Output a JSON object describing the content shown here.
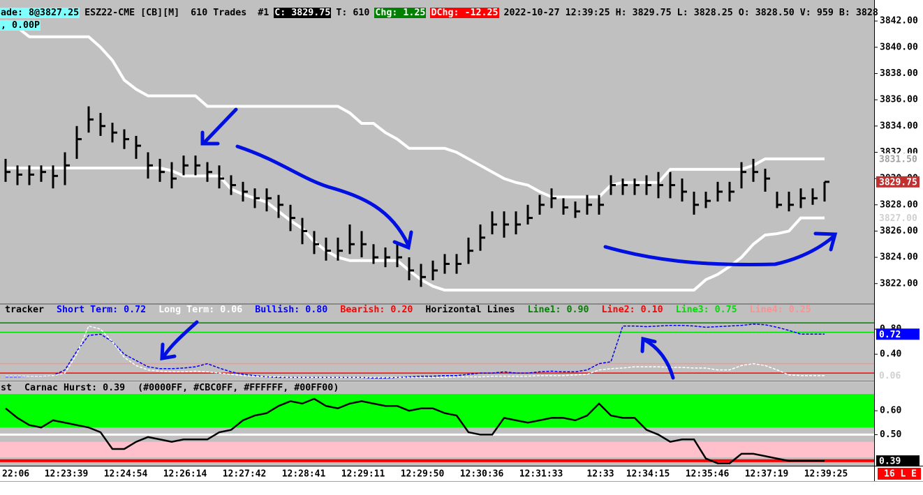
{
  "header": {
    "line1": [
      {
        "text": "ade: 8@3827.25",
        "bg": "#80ffff",
        "fg": "#000000"
      },
      {
        "text": "ESZ22-CME [CB][M]  610 Trades  #1",
        "bg": "transparent",
        "fg": "#000000"
      },
      {
        "text": "C: 3829.75",
        "bg": "#000000",
        "fg": "#ffffff"
      },
      {
        "text": "T: 610",
        "bg": "transparent",
        "fg": "#000000"
      },
      {
        "text": "Chg: 1.25",
        "bg": "#008000",
        "fg": "#ffffff"
      },
      {
        "text": "DChg: -12.25",
        "bg": "#ff0000",
        "fg": "#ffffff"
      },
      {
        "text": "2022-10-27 12:39:25 H: 3829.75 L: 3828.25 O: 3828.50 V: 959 B: 3828",
        "bg": "transparent",
        "fg": "#000000"
      }
    ],
    "line2": [
      {
        "text": ", 0.00P",
        "bg": "#80ffff",
        "fg": "#000000"
      }
    ]
  },
  "status_box": {
    "text": "16 L E",
    "bg": "#ff0000",
    "fg": "#ffffff"
  },
  "chart_data": [
    {
      "type": "ohlc",
      "color": "#000000",
      "categories": [
        "22:06",
        null,
        null,
        null,
        null,
        "12:23:39",
        null,
        null,
        null,
        null,
        "12:24:54",
        null,
        null,
        null,
        null,
        "12:26:14",
        null,
        null,
        null,
        null,
        "12:27:42",
        null,
        null,
        null,
        null,
        "12:28:41",
        null,
        null,
        null,
        null,
        "12:29:11",
        null,
        null,
        null,
        null,
        "12:29:50",
        null,
        null,
        null,
        null,
        "12:30:36",
        null,
        null,
        null,
        null,
        "12:31:33",
        null,
        null,
        null,
        null,
        "12:33",
        null,
        null,
        null,
        "12:34:15",
        null,
        null,
        null,
        null,
        "12:35:46",
        null,
        null,
        null,
        null,
        "12:37:19",
        null,
        null,
        null,
        null,
        "12:39:25"
      ],
      "high": [
        3831.5,
        3831,
        3831,
        3831,
        3831,
        3832,
        3834,
        3835.5,
        3835,
        3834.25,
        3833.75,
        3833.25,
        3832,
        3831.5,
        3831.25,
        3831.75,
        3831.75,
        3831.25,
        3831,
        3830.25,
        3829.75,
        3829.25,
        3829.25,
        3828.75,
        3828,
        3827,
        3826,
        3825.5,
        3825.5,
        3826.5,
        3826,
        3825,
        3824.75,
        3825,
        3824,
        3823.5,
        3823.75,
        3824.25,
        3824.25,
        3825.5,
        3826.5,
        3827.5,
        3827.5,
        3827.5,
        3828,
        3828.75,
        3829.25,
        3828.5,
        3828.25,
        3828.75,
        3828.75,
        3830.25,
        3830,
        3830,
        3830.25,
        3830.5,
        3830.5,
        3830,
        3829,
        3829,
        3829.75,
        3829.75,
        3831.25,
        3831.5,
        3830.75,
        3829,
        3829,
        3829.25,
        3829.25,
        3829.75
      ],
      "low": [
        3829.75,
        3829.5,
        3829.5,
        3829.75,
        3829.25,
        3829.5,
        3831.5,
        3833.5,
        3833.25,
        3832.75,
        3832.25,
        3831.5,
        3830,
        3829.75,
        3829.25,
        3830.25,
        3830.25,
        3829.75,
        3829.25,
        3828.75,
        3828.25,
        3827.75,
        3827.5,
        3827,
        3826,
        3825,
        3824.25,
        3823.75,
        3823.75,
        3824.25,
        3824,
        3823.5,
        3823.25,
        3823.25,
        3822.25,
        3821.75,
        3822.25,
        3822.75,
        3822.75,
        3823.5,
        3824.5,
        3825.75,
        3825.5,
        3825.75,
        3826.5,
        3827.25,
        3827.75,
        3827.25,
        3827,
        3827.25,
        3827.25,
        3828.75,
        3828.75,
        3828.75,
        3828.75,
        3828.5,
        3828.5,
        3828.25,
        3827.25,
        3827.75,
        3828.25,
        3828.25,
        3829.25,
        3829.75,
        3829,
        3827.75,
        3827.5,
        3827.75,
        3828,
        3828.25
      ],
      "close": [
        3830.5,
        3830.3,
        3830.3,
        3830.5,
        3830.2,
        3831,
        3833,
        3834.5,
        3834,
        3833.5,
        3833,
        3832.5,
        3831,
        3830.5,
        3830,
        3831,
        3831,
        3830.5,
        3830,
        3829.5,
        3829,
        3828.5,
        3828.5,
        3828,
        3827,
        3826,
        3825,
        3824.5,
        3824.5,
        3825,
        3825,
        3824,
        3824,
        3824,
        3823,
        3822.5,
        3823,
        3823.5,
        3823.5,
        3824.5,
        3825.5,
        3826.5,
        3826.5,
        3826.5,
        3827,
        3828,
        3828.5,
        3827.8,
        3827.5,
        3828,
        3828,
        3829.5,
        3829.5,
        3829.5,
        3829.5,
        3829.5,
        3829.5,
        3829,
        3828,
        3828.3,
        3829,
        3829,
        3830.5,
        3830.5,
        3830,
        3828,
        3828,
        3828.5,
        3828.5,
        3829.75
      ],
      "overlays": [
        {
          "color": "#ffffff",
          "values": [
            3842,
            3841.5,
            3840.8,
            3840.8,
            3840.8,
            3840.8,
            3840.8,
            3840.8,
            3840,
            3839,
            3837.5,
            3836.8,
            3836.3,
            3836.3,
            3836.3,
            3836.3,
            3836.3,
            3835.5,
            3835.5,
            3835.5,
            3835.5,
            3835.5,
            3835.5,
            3835.5,
            3835.5,
            3835.5,
            3835.5,
            3835.5,
            3835.5,
            3835,
            3834.2,
            3834.2,
            3833.5,
            3833,
            3832.3,
            3832.3,
            3832.3,
            3832.3,
            3832,
            3831.5,
            3831,
            3830.5,
            3830,
            3829.7,
            3829.5,
            3829,
            3828.6,
            3828.6,
            3828.6,
            3828.6,
            3828.6,
            3829.5,
            3829.7,
            3829.7,
            3829.7,
            3829.7,
            3830.7,
            3830.7,
            3830.7,
            3830.7,
            3830.7,
            3830.7,
            3830.7,
            3831,
            3831.5,
            3831.5,
            3831.5,
            3831.5,
            3831.5,
            3831.5
          ]
        },
        {
          "color": "#ffffff",
          "values": [
            3830.8,
            3830.8,
            3830.8,
            3830.8,
            3830.8,
            3830.8,
            3830.8,
            3830.8,
            3830.8,
            3830.8,
            3830.8,
            3830.8,
            3830.8,
            3830.8,
            3830.6,
            3830.2,
            3830.2,
            3830.2,
            3830.2,
            3829.2,
            3828.8,
            3828.5,
            3828.2,
            3827.5,
            3826.8,
            3826.2,
            3825.2,
            3824.5,
            3824,
            3823.75,
            3823.75,
            3823.75,
            3823.75,
            3823.75,
            3823,
            3822.3,
            3821.8,
            3821.5,
            3821.5,
            3821.5,
            3821.5,
            3821.5,
            3821.5,
            3821.5,
            3821.5,
            3821.5,
            3821.5,
            3821.5,
            3821.5,
            3821.5,
            3821.5,
            3821.5,
            3821.5,
            3821.5,
            3821.5,
            3821.5,
            3821.5,
            3821.5,
            3821.5,
            3822.3,
            3822.7,
            3823.3,
            3824,
            3825,
            3825.7,
            3825.8,
            3826,
            3827,
            3827,
            3827
          ]
        }
      ],
      "ylim": [
        3820.5,
        3843.6
      ],
      "yticks": [
        {
          "value": 3842,
          "label": "3842.00"
        },
        {
          "value": 3840,
          "label": "3840.00"
        },
        {
          "value": 3838,
          "label": "3838.00"
        },
        {
          "value": 3836,
          "label": "3836.00"
        },
        {
          "value": 3834,
          "label": "3834.00"
        },
        {
          "value": 3832,
          "label": "3832.00"
        },
        {
          "value": 3830,
          "label": "3830.00"
        },
        {
          "value": 3828,
          "label": "3828.00"
        },
        {
          "value": 3826,
          "label": "3826.00"
        },
        {
          "value": 3824,
          "label": "3824.00"
        },
        {
          "value": 3822,
          "label": "3822.00"
        }
      ],
      "value_markers": [
        {
          "value": 3831.5,
          "label": "3831.50",
          "bg": "#ffffff",
          "fg": "#a0a0a0"
        },
        {
          "value": 3829.75,
          "label": "3829.75",
          "bg": "#c03030",
          "fg": "#ffffff"
        },
        {
          "value": 3827,
          "label": "3827.00",
          "bg": "#ffffff",
          "fg": "#d0d0d0"
        }
      ]
    },
    {
      "type": "line",
      "legend": [
        {
          "text": "tracker",
          "color": "#000000"
        },
        {
          "text": "Short Term: 0.72",
          "color": "#0000ff"
        },
        {
          "text": "Long Term: 0.06",
          "color": "#ffffff"
        },
        {
          "text": "Bullish: 0.80",
          "color": "#0000ff"
        },
        {
          "text": "Bearish: 0.20",
          "color": "#ff0000"
        },
        {
          "text": "Horizontal Lines",
          "color": "#000000"
        }
      ],
      "horizontal_lines": [
        {
          "name": "Line1: 0.90",
          "value": 0.9,
          "color": "#008000"
        },
        {
          "name": "Line2: 0.10",
          "value": 0.1,
          "color": "#ff0000"
        },
        {
          "name": "Line3: 0.75",
          "value": 0.75,
          "color": "#00dd00"
        },
        {
          "name": "Line4: 0.25",
          "value": 0.25,
          "color": "#ff9090"
        }
      ],
      "series": [
        {
          "color": "#0000ff",
          "dashed": true,
          "values": [
            0.04,
            0.04,
            0.05,
            0.05,
            0.06,
            0.15,
            0.45,
            0.7,
            0.72,
            0.6,
            0.4,
            0.3,
            0.2,
            0.17,
            0.17,
            0.18,
            0.2,
            0.25,
            0.18,
            0.12,
            0.08,
            0.06,
            0.04,
            0.03,
            0.03,
            0.03,
            0.03,
            0.03,
            0.03,
            0.03,
            0.03,
            0.02,
            0.02,
            0.03,
            0.04,
            0.05,
            0.05,
            0.06,
            0.06,
            0.08,
            0.1,
            0.1,
            0.12,
            0.1,
            0.1,
            0.12,
            0.13,
            0.12,
            0.12,
            0.15,
            0.25,
            0.28,
            0.85,
            0.85,
            0.84,
            0.85,
            0.86,
            0.86,
            0.85,
            0.83,
            0.84,
            0.85,
            0.86,
            0.88,
            0.87,
            0.83,
            0.78,
            0.72,
            0.72,
            0.72
          ]
        },
        {
          "color": "#ffffff",
          "dashed": true,
          "values": [
            0.05,
            0.05,
            0.05,
            0.05,
            0.06,
            0.1,
            0.4,
            0.85,
            0.8,
            0.6,
            0.35,
            0.22,
            0.15,
            0.13,
            0.12,
            0.12,
            0.13,
            0.12,
            0.1,
            0.08,
            0.06,
            0.05,
            0.04,
            0.04,
            0.03,
            0.03,
            0.03,
            0.03,
            0.03,
            0.03,
            0.03,
            0.03,
            0.03,
            0.03,
            0.03,
            0.03,
            0.03,
            0.03,
            0.04,
            0.04,
            0.04,
            0.05,
            0.05,
            0.05,
            0.05,
            0.06,
            0.06,
            0.06,
            0.07,
            0.08,
            0.15,
            0.17,
            0.18,
            0.2,
            0.2,
            0.2,
            0.19,
            0.19,
            0.18,
            0.18,
            0.15,
            0.15,
            0.22,
            0.25,
            0.22,
            0.15,
            0.07,
            0.06,
            0.06,
            0.06
          ]
        }
      ],
      "ylim": [
        -0.01,
        1.19
      ],
      "yticks": [
        {
          "value": 0.8,
          "label": "0.80"
        },
        {
          "value": 0.4,
          "label": "0.40"
        }
      ],
      "value_markers": [
        {
          "value": 0.72,
          "label": "0.72",
          "bg": "#0000ff",
          "fg": "#ffffff"
        },
        {
          "value": 0.06,
          "label": "0.06",
          "bg": "#ffffff",
          "fg": "#d0d0d0"
        }
      ]
    },
    {
      "type": "line",
      "legend": [
        {
          "text": "st",
          "color": "#000000"
        },
        {
          "text": "Carnac Hurst: 0.39",
          "color": "#000000"
        },
        {
          "text": "(#0000FF, #CBC0FF, #FFFFFF, #00FF00)",
          "color": "#000000"
        }
      ],
      "bands": [
        {
          "from": 0.53,
          "to": 0.67,
          "color": "#00ff00"
        },
        {
          "from": 0.405,
          "to": 0.47,
          "color": "#ffc0cb"
        },
        {
          "from": 0.385,
          "to": 0.397,
          "color": "#ff0000"
        }
      ],
      "horizontal_lines": [
        {
          "value": 0.5,
          "color": "#ffffff"
        }
      ],
      "series": [
        {
          "color": "#000000",
          "dashed": false,
          "values": [
            0.61,
            0.57,
            0.54,
            0.53,
            0.56,
            0.55,
            0.54,
            0.53,
            0.51,
            0.44,
            0.44,
            0.47,
            0.49,
            0.48,
            0.47,
            0.48,
            0.48,
            0.48,
            0.51,
            0.52,
            0.56,
            0.58,
            0.59,
            0.62,
            0.64,
            0.63,
            0.65,
            0.62,
            0.61,
            0.63,
            0.64,
            0.63,
            0.62,
            0.62,
            0.6,
            0.61,
            0.61,
            0.59,
            0.58,
            0.51,
            0.5,
            0.5,
            0.57,
            0.56,
            0.55,
            0.56,
            0.57,
            0.57,
            0.56,
            0.58,
            0.63,
            0.58,
            0.57,
            0.57,
            0.52,
            0.5,
            0.47,
            0.48,
            0.48,
            0.4,
            0.38,
            0.38,
            0.42,
            0.42,
            0.41,
            0.4,
            0.39,
            0.39,
            0.39,
            0.39
          ]
        }
      ],
      "ylim": [
        0.37,
        0.72
      ],
      "yticks": [
        {
          "value": 0.6,
          "label": "0.60"
        },
        {
          "value": 0.5,
          "label": "0.50"
        }
      ],
      "value_markers": [
        {
          "value": 0.39,
          "label": "0.39",
          "bg": "#000000",
          "fg": "#ffffff"
        }
      ]
    }
  ]
}
